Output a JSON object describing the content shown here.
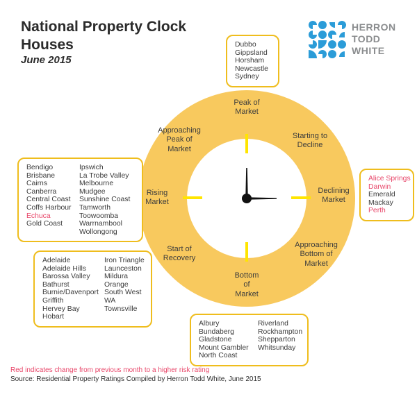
{
  "header": {
    "title_line1": "National Property Clock",
    "title_line2": "Houses",
    "subtitle": "June 2015",
    "logo": {
      "icon": "herron-todd-white-dots-logo",
      "name_line1": "HERRON",
      "name_line2": "TODD",
      "name_line3": "WHITE"
    }
  },
  "colors": {
    "ring_gold": "#F8C95E",
    "tick_yellow": "#FFE500",
    "box_border_gold": "#EFBD1D",
    "risk_red": "#E8476A",
    "logo_blue": "#2B9CD8",
    "logo_gray": "#8A8C8E"
  },
  "clock_labels": {
    "peak": "Peak of\nMarket",
    "approaching_peak": "Approaching\nPeak of\nMarket",
    "starting_to_decline": "Starting to\nDecline",
    "rising": "Rising\nMarket",
    "declining": "Declining\nMarket",
    "start_of_recovery": "Start of\nRecovery",
    "approaching_bottom": "Approaching\nBottom of\nMarket",
    "bottom": "Bottom\nof\nMarket"
  },
  "boxes": {
    "peak_of_market": {
      "col1": [
        {
          "name": "Dubbo"
        },
        {
          "name": "Gippsland"
        },
        {
          "name": "Horsham"
        },
        {
          "name": "Newcastle"
        },
        {
          "name": "Sydney"
        }
      ]
    },
    "rising_market": {
      "col1": [
        {
          "name": "Bendigo"
        },
        {
          "name": "Brisbane"
        },
        {
          "name": "Cairns"
        },
        {
          "name": "Canberra"
        },
        {
          "name": "Central Coast"
        },
        {
          "name": "Coffs Harbour"
        },
        {
          "name": "Echuca",
          "red": true
        },
        {
          "name": "Gold Coast"
        }
      ],
      "col2": [
        {
          "name": "Ipswich"
        },
        {
          "name": "La Trobe Valley"
        },
        {
          "name": "Melbourne"
        },
        {
          "name": "Mudgee"
        },
        {
          "name": "Sunshine Coast"
        },
        {
          "name": "Tamworth"
        },
        {
          "name": "Toowoomba"
        },
        {
          "name": "Warrnambool"
        },
        {
          "name": "Wollongong"
        }
      ]
    },
    "declining_market": {
      "col1": [
        {
          "name": "Alice Springs",
          "red": true
        },
        {
          "name": "Darwin",
          "red": true
        },
        {
          "name": "Emerald"
        },
        {
          "name": "Mackay"
        },
        {
          "name": "Perth",
          "red": true
        }
      ]
    },
    "start_of_recovery": {
      "col1": [
        {
          "name": "Adelaide"
        },
        {
          "name": "Adelaide Hills"
        },
        {
          "name": "Barossa Valley"
        },
        {
          "name": "Bathurst"
        },
        {
          "name": "Burnie/Davenport"
        },
        {
          "name": "Griffith"
        },
        {
          "name": "Hervey Bay"
        },
        {
          "name": "Hobart"
        }
      ],
      "col2": [
        {
          "name": "Iron Triangle"
        },
        {
          "name": "Launceston"
        },
        {
          "name": "Mildura"
        },
        {
          "name": "Orange"
        },
        {
          "name": "South West"
        },
        {
          "name": "WA"
        },
        {
          "name": "Townsville"
        }
      ]
    },
    "bottom_of_market": {
      "col1": [
        {
          "name": "Albury"
        },
        {
          "name": "Bundaberg"
        },
        {
          "name": "Gladstone"
        },
        {
          "name": "Mount Gambler"
        },
        {
          "name": "North Coast"
        }
      ],
      "col2": [
        {
          "name": "Riverland"
        },
        {
          "name": "Rockhampton"
        },
        {
          "name": "Shepparton"
        },
        {
          "name": "Whitsunday"
        }
      ]
    }
  },
  "footer": {
    "note": "Red indicates change from previous month to a higher risk rating",
    "source": "Source: Residential Property Ratings Compiled by Herron Todd White, June 2015"
  }
}
